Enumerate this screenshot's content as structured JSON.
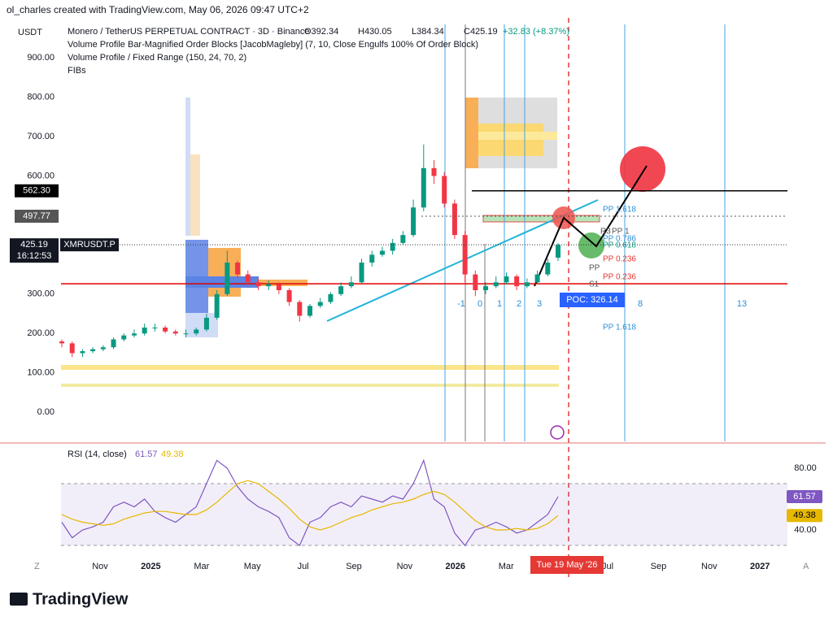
{
  "header": {
    "credit": "ol_charles created with TradingView.com, May 06, 2026 09:47 UTC+2",
    "currency": "USDT",
    "symbol": "Monero / TetherUS PERPETUAL CONTRACT · 3D · Binance",
    "ohlc": [
      "O392.34",
      "H430.05",
      "L384.34",
      "C425.19",
      "+32.83 (+8.37%)"
    ],
    "indicators": [
      "Volume Profile Bar-Magnified Order Blocks [JacobMagleby] (7, 10, Close Engulfs 100% Of Order Block)",
      "Volume Profile / Fixed Range (150, 24, 70, 2)",
      "FIBs"
    ]
  },
  "chart_data": [
    {
      "type": "candlestick",
      "up_color": "#089981",
      "down_color": "#f23645",
      "open": [
        180,
        175,
        150,
        155,
        160,
        165,
        185,
        195,
        200,
        215,
        215,
        205,
        200,
        200,
        210,
        240,
        300,
        380,
        350,
        330,
        320,
        325,
        310,
        280,
        245,
        270,
        280,
        300,
        320,
        330,
        380,
        400,
        410,
        430,
        450,
        520,
        620,
        600,
        530,
        450,
        350,
        310,
        320,
        330,
        345,
        320,
        330,
        350,
        392.34
      ],
      "high": [
        185,
        180,
        160,
        165,
        170,
        190,
        200,
        210,
        225,
        225,
        220,
        210,
        210,
        215,
        250,
        310,
        410,
        385,
        360,
        340,
        335,
        330,
        315,
        285,
        275,
        290,
        305,
        330,
        345,
        390,
        410,
        420,
        440,
        460,
        540,
        680,
        640,
        610,
        540,
        460,
        360,
        330,
        345,
        355,
        350,
        340,
        360,
        390,
        430.05
      ],
      "low": [
        165,
        140,
        140,
        150,
        155,
        160,
        180,
        190,
        195,
        205,
        200,
        195,
        190,
        195,
        205,
        235,
        295,
        340,
        320,
        310,
        310,
        300,
        270,
        230,
        240,
        265,
        275,
        295,
        315,
        325,
        370,
        395,
        400,
        425,
        445,
        510,
        580,
        520,
        440,
        330,
        295,
        300,
        315,
        325,
        310,
        315,
        325,
        345,
        384.34
      ],
      "close": [
        175,
        150,
        155,
        160,
        165,
        185,
        195,
        200,
        215,
        215,
        205,
        200,
        200,
        210,
        240,
        300,
        380,
        350,
        330,
        320,
        325,
        310,
        280,
        245,
        270,
        280,
        300,
        320,
        330,
        380,
        400,
        410,
        430,
        450,
        520,
        620,
        600,
        530,
        450,
        350,
        310,
        320,
        330,
        345,
        320,
        330,
        350,
        380,
        425.19
      ],
      "ylim": [
        -74,
        985
      ],
      "yticks": [
        {
          "value": 0,
          "label": "0.00"
        },
        {
          "value": 100,
          "label": "100.00"
        },
        {
          "value": 200,
          "label": "200.00"
        },
        {
          "value": 300,
          "label": "300.00"
        },
        {
          "value": 600,
          "label": "600.00"
        },
        {
          "value": 700,
          "label": "700.00"
        },
        {
          "value": 800,
          "label": "800.00"
        },
        {
          "value": 900,
          "label": "900.00"
        }
      ],
      "categories": [
        "Nov",
        "2025",
        "Mar",
        "May",
        "Jul",
        "Sep",
        "Nov",
        "2026",
        "Mar",
        null,
        "Jul",
        "Sep",
        "Nov",
        "2027"
      ],
      "price_lines": [
        {
          "value": 562.3,
          "label": "562.30",
          "color": "#000000"
        },
        {
          "value": 497.77,
          "label": "497.77",
          "color": "#555555"
        }
      ],
      "symbol_badge": "XMRUSDT.P",
      "countdown": "16:12:53",
      "poc": {
        "value": 326.14,
        "label": "POC: 326.14",
        "color": "#e00000"
      },
      "fib_labels": [
        "-1",
        "0",
        "1",
        "2",
        "3",
        "8",
        "13"
      ],
      "pivot_labels": [
        "PP 1.618",
        "R3",
        "PP 1",
        "PP 0.786",
        "PP 0.618",
        "PP 0.236",
        "PP",
        "PP 0.236",
        "S1",
        "PP 1.618"
      ],
      "date_badge": "Tue 19 May '26"
    },
    {
      "type": "line",
      "title": "RSI (14, close)",
      "series": [
        {
          "color": "#7e57c2",
          "values": [
            45,
            35,
            40,
            42,
            45,
            55,
            58,
            55,
            60,
            52,
            48,
            45,
            50,
            55,
            70,
            85,
            80,
            68,
            60,
            55,
            52,
            48,
            35,
            30,
            45,
            48,
            55,
            58,
            55,
            62,
            60,
            58,
            62,
            60,
            70,
            85,
            60,
            55,
            38,
            30,
            40,
            42,
            45,
            42,
            38,
            40,
            45,
            50,
            61.57
          ]
        },
        {
          "color": "#e6b800",
          "values": [
            50,
            47,
            45,
            44,
            43,
            44,
            47,
            49,
            51,
            52,
            52,
            51,
            50,
            50,
            53,
            58,
            64,
            70,
            72,
            70,
            65,
            60,
            54,
            47,
            42,
            40,
            42,
            45,
            48,
            50,
            53,
            55,
            57,
            58,
            60,
            63,
            65,
            63,
            58,
            52,
            46,
            42,
            40,
            40,
            41,
            40,
            41,
            44,
            49.38
          ]
        }
      ],
      "ylim": [
        25.3,
        94.7
      ],
      "yticks": [
        {
          "value": 80,
          "label": "80.00"
        },
        {
          "value": 40,
          "label": "40.00"
        }
      ],
      "bands": [
        70,
        30
      ]
    }
  ],
  "footer": {
    "brand": "TradingView",
    "left_button": "Z",
    "right_button": "A"
  }
}
